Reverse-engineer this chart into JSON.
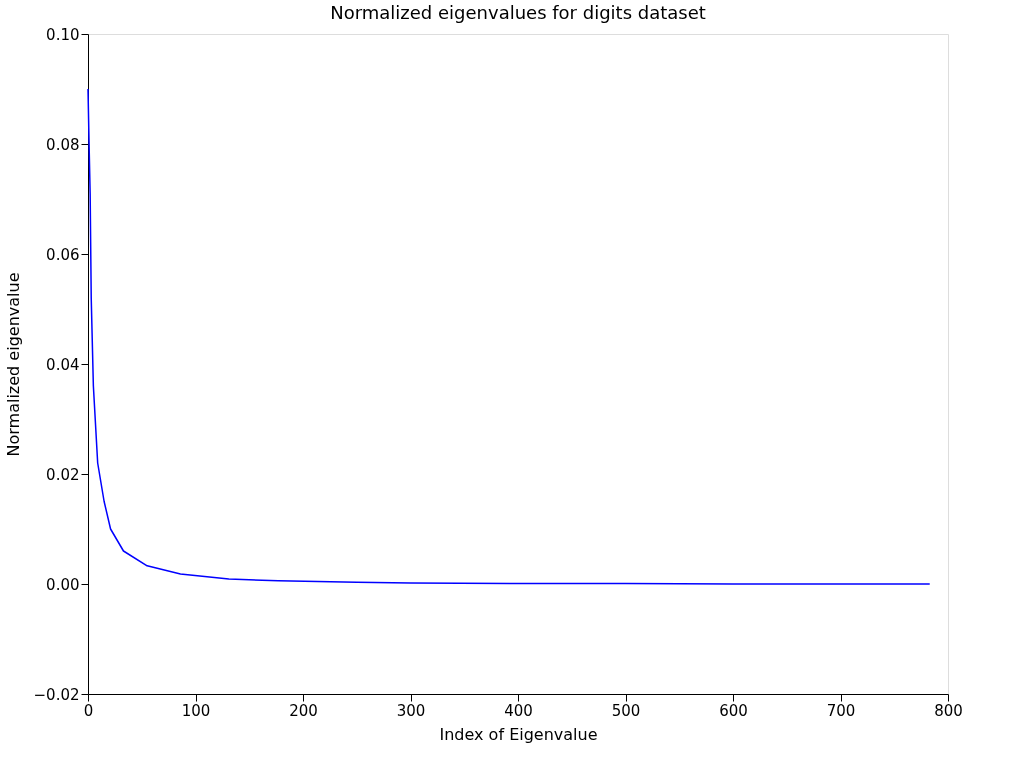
{
  "chart_data": {
    "type": "line",
    "title": "Normalized eigenvalues for digits dataset",
    "xlabel": "Index of Eigenvalue",
    "ylabel": "Normalized eigenvalue",
    "x": [
      0,
      1,
      2,
      3,
      5,
      9,
      15,
      21,
      33,
      55,
      86,
      131,
      177,
      250,
      300,
      400,
      500,
      600,
      700,
      783
    ],
    "series": [
      {
        "color": "#0000ff",
        "values": [
          0.09,
          0.08,
          0.071,
          0.052,
          0.036,
          0.022,
          0.015,
          0.01,
          0.006,
          0.0033,
          0.0018,
          0.0009,
          0.0006,
          0.0003,
          0.0002,
          0.0001,
          0.0001,
          0.0,
          0.0,
          0.0
        ]
      }
    ],
    "xlim": [
      0,
      800
    ],
    "xticks": [
      0,
      100,
      200,
      300,
      400,
      500,
      600,
      700,
      800
    ],
    "ylim": [
      -0.02,
      0.1
    ],
    "yticks": [
      {
        "value": -0.02,
        "label": "−0.02"
      },
      {
        "value": 0.0,
        "label": "0.00"
      },
      {
        "value": 0.02,
        "label": "0.02"
      },
      {
        "value": 0.04,
        "label": "0.04"
      },
      {
        "value": 0.06,
        "label": "0.06"
      },
      {
        "value": 0.08,
        "label": "0.08"
      },
      {
        "value": 0.1,
        "label": "0.10"
      }
    ],
    "grid": false,
    "marker": "none",
    "line_style": "solid"
  }
}
